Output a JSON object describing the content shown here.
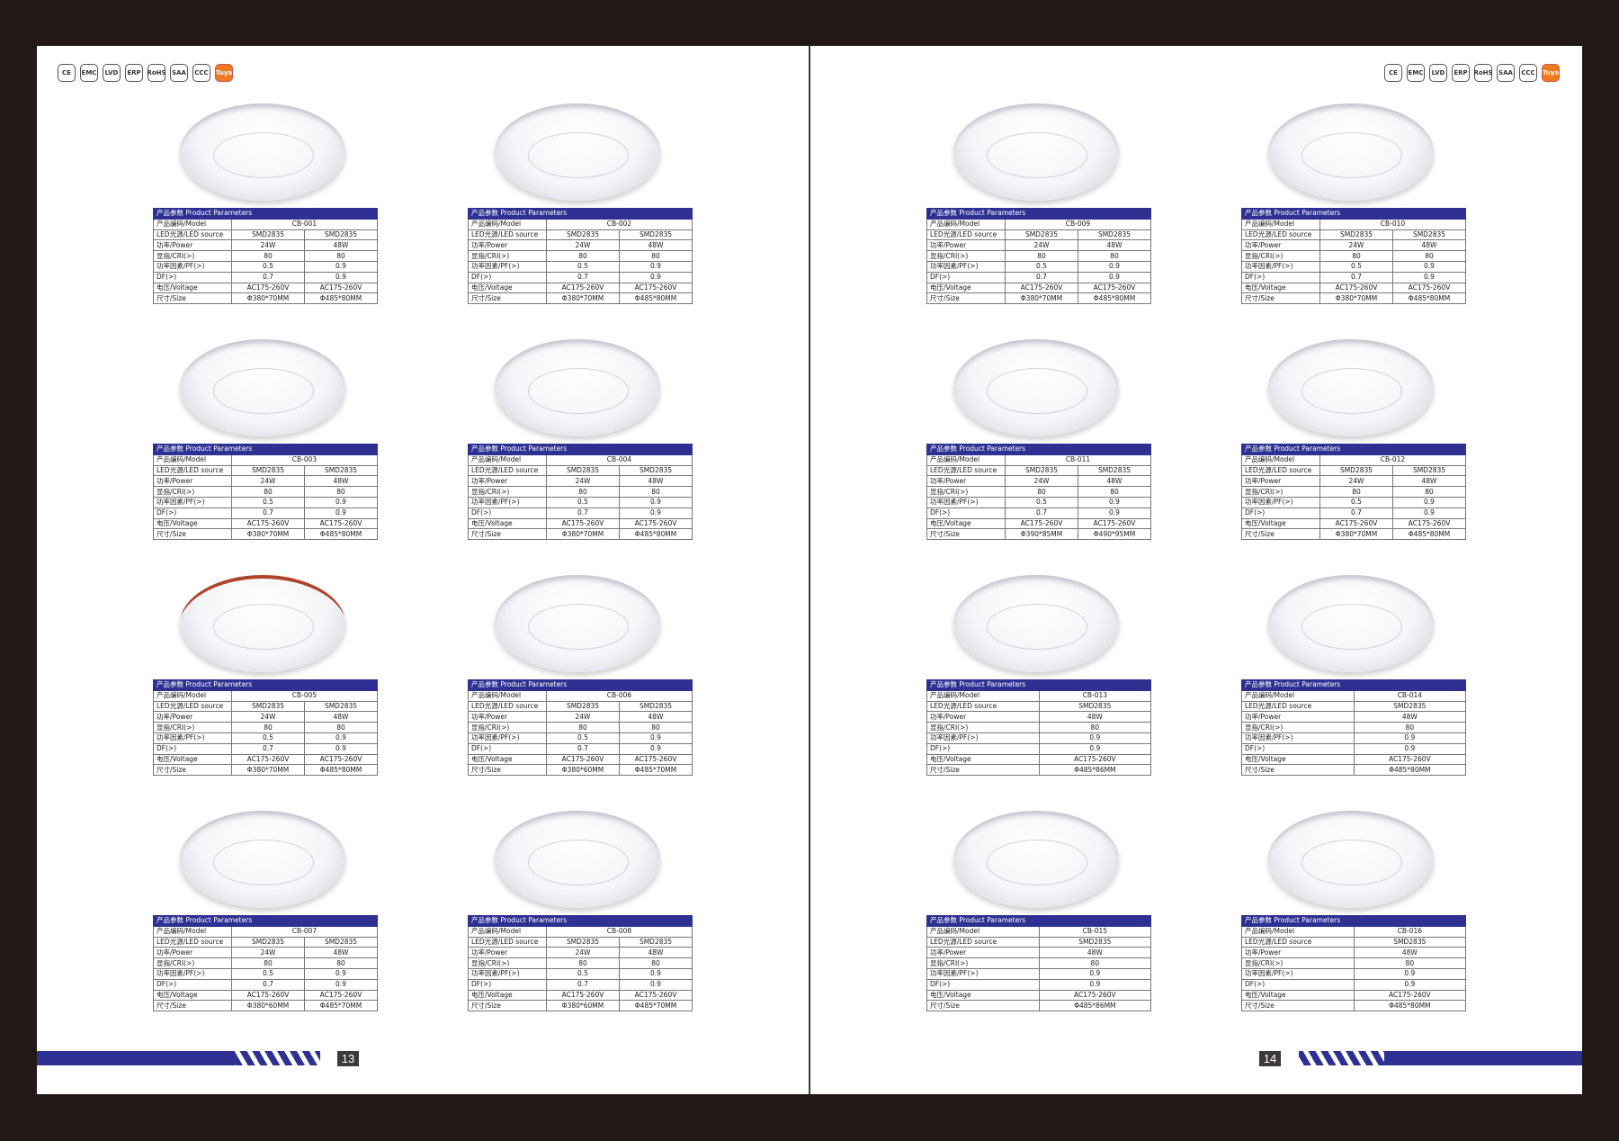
{
  "certifications": [
    "CE",
    "EMC",
    "LVD",
    "ERP",
    "RoHS",
    "SAA",
    "CCC",
    "Tuya"
  ],
  "labels": {
    "header": "产品参数 Product Parameters",
    "model": "产品编码/Model",
    "source": "LED光源/LED source",
    "power": "功率/Power",
    "cri": "显指/CRI(>)",
    "pf": "功率因素/PF(>)",
    "df": "DF(>)",
    "voltage": "电压/Voltage",
    "size": "尺寸/Size"
  },
  "accent_color": "#2e3192",
  "pages": [
    {
      "number": "13",
      "products": [
        {
          "model": "CB-001",
          "source": [
            "SMD2835",
            "SMD2835"
          ],
          "power": [
            "24W",
            "48W"
          ],
          "cri": [
            "80",
            "80"
          ],
          "pf": [
            "0.5",
            "0.9"
          ],
          "df": [
            "0.7",
            "0.9"
          ],
          "voltage": [
            "AC175-260V",
            "AC175-260V"
          ],
          "size": [
            "Φ380*70MM",
            "Φ485*80MM"
          ]
        },
        {
          "model": "CB-002",
          "source": [
            "SMD2835",
            "SMD2835"
          ],
          "power": [
            "24W",
            "48W"
          ],
          "cri": [
            "80",
            "80"
          ],
          "pf": [
            "0.5",
            "0.9"
          ],
          "df": [
            "0.7",
            "0.9"
          ],
          "voltage": [
            "AC175-260V",
            "AC175-260V"
          ],
          "size": [
            "Φ380*70MM",
            "Φ485*80MM"
          ]
        },
        {
          "model": "CB-003",
          "source": [
            "SMD2835",
            "SMD2835"
          ],
          "power": [
            "24W",
            "48W"
          ],
          "cri": [
            "80",
            "80"
          ],
          "pf": [
            "0.5",
            "0.9"
          ],
          "df": [
            "0.7",
            "0.9"
          ],
          "voltage": [
            "AC175-260V",
            "AC175-260V"
          ],
          "size": [
            "Φ380*70MM",
            "Φ485*80MM"
          ]
        },
        {
          "model": "CB-004",
          "source": [
            "SMD2835",
            "SMD2835"
          ],
          "power": [
            "24W",
            "48W"
          ],
          "cri": [
            "80",
            "80"
          ],
          "pf": [
            "0.5",
            "0.9"
          ],
          "df": [
            "0.7",
            "0.9"
          ],
          "voltage": [
            "AC175-260V",
            "AC175-260V"
          ],
          "size": [
            "Φ380*70MM",
            "Φ485*80MM"
          ]
        },
        {
          "model": "CB-005",
          "source": [
            "SMD2835",
            "SMD2835"
          ],
          "power": [
            "24W",
            "48W"
          ],
          "cri": [
            "80",
            "80"
          ],
          "pf": [
            "0.5",
            "0.9"
          ],
          "df": [
            "0.7",
            "0.9"
          ],
          "voltage": [
            "AC175-260V",
            "AC175-260V"
          ],
          "size": [
            "Φ380*70MM",
            "Φ485*80MM"
          ]
        },
        {
          "model": "CB-006",
          "source": [
            "SMD2835",
            "SMD2835"
          ],
          "power": [
            "24W",
            "48W"
          ],
          "cri": [
            "80",
            "80"
          ],
          "pf": [
            "0.5",
            "0.9"
          ],
          "df": [
            "0.7",
            "0.9"
          ],
          "voltage": [
            "AC175-260V",
            "AC175-260V"
          ],
          "size": [
            "Φ380*60MM",
            "Φ485*70MM"
          ]
        },
        {
          "model": "CB-007",
          "source": [
            "SMD2835",
            "SMD2835"
          ],
          "power": [
            "24W",
            "48W"
          ],
          "cri": [
            "80",
            "80"
          ],
          "pf": [
            "0.5",
            "0.9"
          ],
          "df": [
            "0.7",
            "0.9"
          ],
          "voltage": [
            "AC175-260V",
            "AC175-260V"
          ],
          "size": [
            "Φ380*60MM",
            "Φ485*70MM"
          ]
        },
        {
          "model": "CB-008",
          "source": [
            "SMD2835",
            "SMD2835"
          ],
          "power": [
            "24W",
            "48W"
          ],
          "cri": [
            "80",
            "80"
          ],
          "pf": [
            "0.5",
            "0.9"
          ],
          "df": [
            "0.7",
            "0.9"
          ],
          "voltage": [
            "AC175-260V",
            "AC175-260V"
          ],
          "size": [
            "Φ380*60MM",
            "Φ485*70MM"
          ]
        }
      ]
    },
    {
      "number": "14",
      "products": [
        {
          "model": "CB-009",
          "source": [
            "SMD2835",
            "SMD2835"
          ],
          "power": [
            "24W",
            "48W"
          ],
          "cri": [
            "80",
            "80"
          ],
          "pf": [
            "0.5",
            "0.9"
          ],
          "df": [
            "0.7",
            "0.9"
          ],
          "voltage": [
            "AC175-260V",
            "AC175-260V"
          ],
          "size": [
            "Φ380*70MM",
            "Φ485*80MM"
          ]
        },
        {
          "model": "CB-010",
          "source": [
            "SMD2835",
            "SMD2835"
          ],
          "power": [
            "24W",
            "48W"
          ],
          "cri": [
            "80",
            "80"
          ],
          "pf": [
            "0.5",
            "0.9"
          ],
          "df": [
            "0.7",
            "0.9"
          ],
          "voltage": [
            "AC175-260V",
            "AC175-260V"
          ],
          "size": [
            "Φ380*70MM",
            "Φ485*80MM"
          ]
        },
        {
          "model": "CB-011",
          "source": [
            "SMD2835",
            "SMD2835"
          ],
          "power": [
            "24W",
            "48W"
          ],
          "cri": [
            "80",
            "80"
          ],
          "pf": [
            "0.5",
            "0.9"
          ],
          "df": [
            "0.7",
            "0.9"
          ],
          "voltage": [
            "AC175-260V",
            "AC175-260V"
          ],
          "size": [
            "Φ390*85MM",
            "Φ490*95MM"
          ]
        },
        {
          "model": "CB-012",
          "source": [
            "SMD2835",
            "SMD2835"
          ],
          "power": [
            "24W",
            "48W"
          ],
          "cri": [
            "80",
            "80"
          ],
          "pf": [
            "0.5",
            "0.9"
          ],
          "df": [
            "0.7",
            "0.9"
          ],
          "voltage": [
            "AC175-260V",
            "AC175-260V"
          ],
          "size": [
            "Φ380*70MM",
            "Φ485*80MM"
          ]
        },
        {
          "model": "CB-013",
          "source": [
            "SMD2835"
          ],
          "power": [
            "48W"
          ],
          "cri": [
            "80"
          ],
          "pf": [
            "0.9"
          ],
          "df": [
            "0.9"
          ],
          "voltage": [
            "AC175-260V"
          ],
          "size": [
            "Φ485*86MM"
          ]
        },
        {
          "model": "CB-014",
          "source": [
            "SMD2835"
          ],
          "power": [
            "48W"
          ],
          "cri": [
            "80"
          ],
          "pf": [
            "0.9"
          ],
          "df": [
            "0.9"
          ],
          "voltage": [
            "AC175-260V"
          ],
          "size": [
            "Φ485*80MM"
          ]
        },
        {
          "model": "CB-015",
          "source": [
            "SMD2835"
          ],
          "power": [
            "48W"
          ],
          "cri": [
            "80"
          ],
          "pf": [
            "0.9"
          ],
          "df": [
            "0.9"
          ],
          "voltage": [
            "AC175-260V"
          ],
          "size": [
            "Φ485*86MM"
          ]
        },
        {
          "model": "CB-016",
          "source": [
            "SMD2835"
          ],
          "power": [
            "48W"
          ],
          "cri": [
            "80"
          ],
          "pf": [
            "0.9"
          ],
          "df": [
            "0.9"
          ],
          "voltage": [
            "AC175-260V"
          ],
          "size": [
            "Φ485*80MM"
          ]
        }
      ]
    }
  ]
}
